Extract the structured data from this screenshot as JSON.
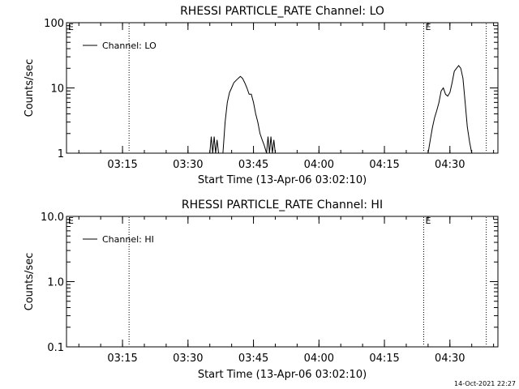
{
  "chart_data": [
    {
      "type": "line",
      "title": "RHESSI PARTICLE_RATE Channel: LO",
      "xlabel": "Start Time (13-Apr-06 03:02:10)",
      "ylabel": "Counts/sec",
      "yscale": "log",
      "ylim": [
        1,
        100
      ],
      "y_ticks": [
        "1",
        "10",
        "100"
      ],
      "xlim": [
        "03:02:10",
        "04:41:00"
      ],
      "x_ticks": [
        "03:15",
        "03:30",
        "03:45",
        "04:00",
        "04:15",
        "04:30"
      ],
      "legend": "top-left",
      "series": [
        {
          "name": "Channel: LO",
          "x": [
            "03:35:00",
            "03:35:20",
            "03:35:40",
            "03:36:00",
            "03:36:20",
            "03:36:40",
            "03:37:00",
            "03:38:00",
            "03:38:30",
            "03:39:00",
            "03:39:30",
            "03:40:00",
            "03:40:30",
            "03:41:00",
            "03:41:30",
            "03:42:00",
            "03:42:30",
            "03:43:00",
            "03:43:30",
            "03:44:00",
            "03:44:30",
            "03:45:00",
            "03:45:30",
            "03:46:00",
            "03:46:30",
            "03:47:00",
            "03:47:30",
            "03:48:00",
            "03:48:20",
            "03:48:40",
            "03:49:00",
            "03:49:20",
            "03:49:40",
            "03:50:00",
            "04:25:00",
            "04:25:30",
            "04:26:00",
            "04:26:30",
            "04:27:00",
            "04:27:30",
            "04:28:00",
            "04:28:30",
            "04:29:00",
            "04:29:30",
            "04:30:00",
            "04:30:30",
            "04:31:00",
            "04:31:30",
            "04:32:00",
            "04:32:30",
            "04:33:00",
            "04:33:30",
            "04:34:00",
            "04:34:30",
            "04:35:00"
          ],
          "values": [
            1,
            1.8,
            1,
            1.8,
            1,
            1.6,
            1,
            1,
            3,
            6,
            8.5,
            10,
            12,
            13,
            14,
            15,
            14,
            12,
            10,
            8,
            8,
            6,
            4,
            3,
            2,
            1.6,
            1.3,
            1,
            1.8,
            1,
            1.8,
            1,
            1.6,
            1,
            1,
            1.6,
            2.5,
            3.5,
            4.5,
            6,
            9,
            10,
            8,
            7.5,
            8.5,
            12,
            18,
            20,
            22,
            20,
            14,
            6,
            2.5,
            1.5,
            1
          ]
        }
      ],
      "markers": [
        {
          "x": "03:16:30",
          "label": ""
        },
        {
          "x": "04:24:00",
          "label": "E"
        },
        {
          "x": "04:38:20",
          "label": ""
        }
      ],
      "corner_label": "E"
    },
    {
      "type": "line",
      "title": "RHESSI PARTICLE_RATE Channel: HI",
      "xlabel": "Start Time (13-Apr-06 03:02:10)",
      "ylabel": "Counts/sec",
      "yscale": "log",
      "ylim": [
        0.1,
        10.0
      ],
      "y_ticks": [
        "0.1",
        "1.0",
        "10.0"
      ],
      "xlim": [
        "03:02:10",
        "04:41:00"
      ],
      "x_ticks": [
        "03:15",
        "03:30",
        "03:45",
        "04:00",
        "04:15",
        "04:30"
      ],
      "legend": "top-left",
      "series": [
        {
          "name": "Channel: HI",
          "x": [],
          "values": []
        }
      ],
      "markers": [
        {
          "x": "03:16:30",
          "label": ""
        },
        {
          "x": "04:24:00",
          "label": "E"
        },
        {
          "x": "04:38:20",
          "label": ""
        }
      ],
      "corner_label": "E"
    }
  ],
  "footer": {
    "timestamp": "14-Oct-2021 22:27"
  }
}
